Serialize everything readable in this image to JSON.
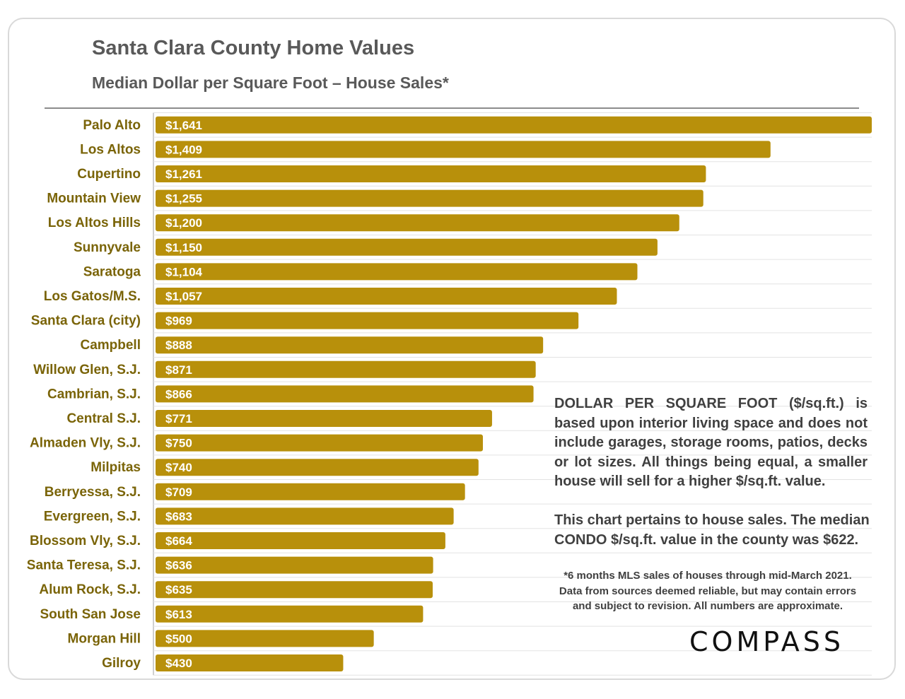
{
  "title": "Santa Clara County Home Values",
  "subtitle": "Median Dollar per Square Foot – House Sales*",
  "chart_data": {
    "type": "bar",
    "orientation": "horizontal",
    "title": "Santa Clara County Home Values",
    "subtitle": "Median Dollar per Square Foot – House Sales*",
    "xlabel": "",
    "ylabel": "",
    "xlim": [
      0,
      1641
    ],
    "categories": [
      "Palo Alto",
      "Los Altos",
      "Cupertino",
      "Mountain View",
      "Los Altos Hills",
      "Sunnyvale",
      "Saratoga",
      "Los Gatos/M.S.",
      "Santa Clara (city)",
      "Campbell",
      "Willow Glen, S.J.",
      "Cambrian, S.J.",
      "Central S.J.",
      "Almaden Vly, S.J.",
      "Milpitas",
      "Berryessa, S.J.",
      "Evergreen, S.J.",
      "Blossom Vly, S.J.",
      "Santa Teresa, S.J.",
      "Alum Rock, S.J.",
      "South San Jose",
      "Morgan Hill",
      "Gilroy"
    ],
    "values": [
      1641,
      1409,
      1261,
      1255,
      1200,
      1150,
      1104,
      1057,
      969,
      888,
      871,
      866,
      771,
      750,
      740,
      709,
      683,
      664,
      636,
      635,
      613,
      500,
      430
    ],
    "labels": [
      "$1,641",
      "$1,409",
      "$1,261",
      "$1,255",
      "$1,200",
      "$1,150",
      "$1,104",
      "$1,057",
      "$969",
      "$888",
      "$871",
      "$866",
      "$771",
      "$750",
      "$740",
      "$709",
      "$683",
      "$664",
      "$636",
      "$635",
      "$613",
      "$500",
      "$430"
    ],
    "bar_color": "#b8900b",
    "label_color": "#7a6408",
    "grid": true
  },
  "notes": {
    "definition": "DOLLAR PER SQUARE FOOT ($/sq.ft.) is based upon interior living space and does not include garages, storage rooms, patios, decks or lot sizes. All things being equal, a smaller house will sell for a higher $/sq.ft. value.",
    "condo": "This chart pertains to house sales. The median CONDO $/sq.ft. value in the county was $622.",
    "footnote_lines": [
      "*6 months MLS sales of houses through mid-March 2021.",
      "Data from sources deemed reliable, but may contain errors",
      "and subject to revision. All numbers are approximate."
    ]
  },
  "logo": {
    "text": "COMPASS",
    "icon": "compass-logo"
  }
}
